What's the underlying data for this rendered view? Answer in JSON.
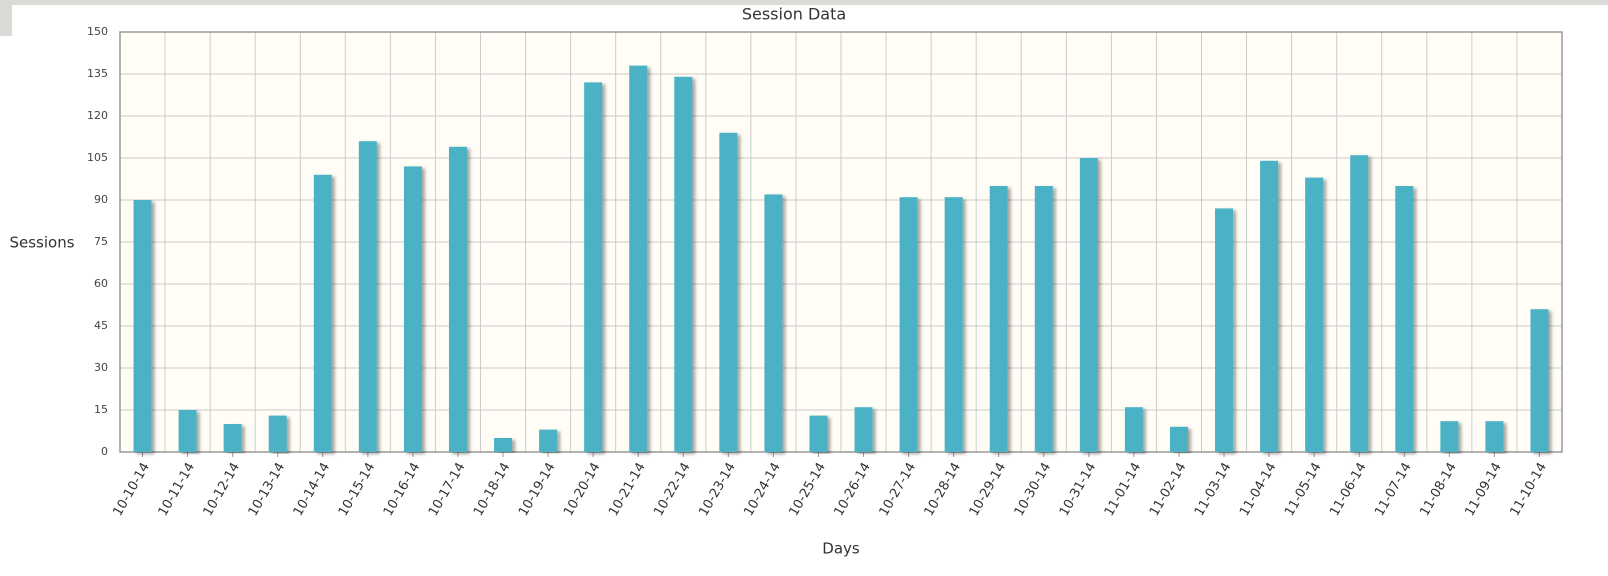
{
  "chart_data": {
    "type": "bar",
    "title": "Session Data",
    "x_label": "Days",
    "y_label": "Sessions",
    "categories": [
      "10-10-14",
      "10-11-14",
      "10-12-14",
      "10-13-14",
      "10-14-14",
      "10-15-14",
      "10-16-14",
      "10-17-14",
      "10-18-14",
      "10-19-14",
      "10-20-14",
      "10-21-14",
      "10-22-14",
      "10-23-14",
      "10-24-14",
      "10-25-14",
      "10-26-14",
      "10-27-14",
      "10-28-14",
      "10-29-14",
      "10-30-14",
      "10-31-14",
      "11-01-14",
      "11-02-14",
      "11-03-14",
      "11-04-14",
      "11-05-14",
      "11-06-14",
      "11-07-14",
      "11-08-14",
      "11-09-14",
      "11-10-14"
    ],
    "values": [
      90,
      15,
      10,
      13,
      99,
      111,
      102,
      109,
      5,
      8,
      132,
      138,
      134,
      114,
      92,
      13,
      16,
      91,
      91,
      95,
      95,
      105,
      16,
      9,
      87,
      104,
      98,
      106,
      95,
      11,
      11,
      51
    ],
    "color": "#4bb2c5",
    "ylim": [
      0,
      150
    ],
    "yticks": [
      0,
      15,
      30,
      45,
      60,
      75,
      90,
      105,
      120,
      135,
      150
    ],
    "grid": true
  }
}
